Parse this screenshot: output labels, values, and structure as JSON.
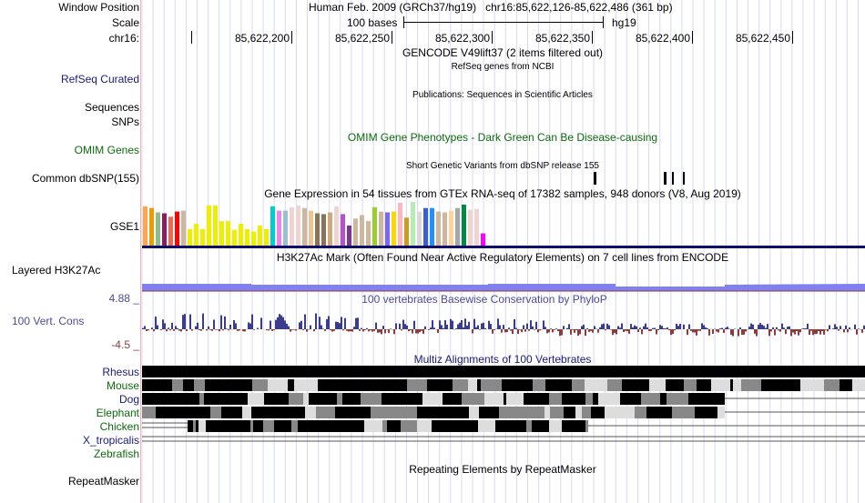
{
  "header": {
    "window_position_label": "Window Position",
    "scale_label": "Scale",
    "chrom_label": "chr16:",
    "assembly_text": "Human Feb. 2009 (GRCh37/hg19)   chr16:85,622,126-85,622,486 (361 bp)",
    "scale_text": "100 bases",
    "scale_db": "hg19",
    "ruler_ticks": [
      "85,622,200",
      "85,622,250",
      "85,622,300",
      "85,622,350",
      "85,622,400",
      "85,622,450"
    ]
  },
  "tracks": {
    "gencode": {
      "title": "GENCODE V49lift37 (2 items filtered out)"
    },
    "refseq": {
      "label": "RefSeq Curated",
      "title": "RefSeq genes from NCBI"
    },
    "publications": {
      "label_line1": "Sequences",
      "label_line2": "SNPs",
      "title": "Publications: Sequences in Scientific Articles"
    },
    "omim": {
      "label": "OMIM Genes",
      "title": "OMIM Gene Phenotypes - Dark Green Can Be Disease-causing"
    },
    "dbsnp": {
      "label": "Common dbSNP(155)",
      "title": "Short Genetic Variants from dbSNP release 155"
    },
    "gtex": {
      "label": "GSE1",
      "title": "Gene Expression in 54 tissues from GTEx RNA-seq of 17382 samples, 948 donors (V8, Aug 2019)",
      "bar_colors": [
        "#FFA54F",
        "#EE9A00",
        "#8FBC8F",
        "#8B1C62",
        "#EE6A50",
        "#FF0000",
        "#CDB79E",
        "#EEEE00",
        "#EEEE00",
        "#EEEE00",
        "#EEEE00",
        "#EEEE00",
        "#EEEE00",
        "#EEEE00",
        "#EEEE00",
        "#EEEE00",
        "#EEEE00",
        "#EEEE00",
        "#EEEE00",
        "#EEEE00",
        "#00CDCD",
        "#EE82EE",
        "#9AC0CD",
        "#EED5D2",
        "#EED5D2",
        "#CDB79E",
        "#EEC591",
        "#8B7355",
        "#8B7355",
        "#CDAA7D",
        "#EED5D2",
        "#B452CD",
        "#7A378B",
        "#CDB79E",
        "#CDB79E",
        "#CDB79E",
        "#9ACD32",
        "#CDB79E",
        "#7B68EE",
        "#FFD700",
        "#FFB6C1",
        "#CD9B1D",
        "#B4EEB4",
        "#D9D9D9",
        "#3A5FCD",
        "#1E90FF",
        "#CDB79E",
        "#CDB79E",
        "#FFD39B",
        "#A6A6A6",
        "#008B45",
        "#EED5D2",
        "#EED5D2",
        "#FF00FF"
      ],
      "bar_values": [
        0.9,
        0.86,
        0.76,
        0.74,
        0.66,
        0.78,
        0.8,
        0.38,
        0.5,
        0.38,
        0.92,
        0.92,
        0.56,
        0.56,
        0.36,
        0.5,
        0.38,
        0.32,
        0.46,
        0.38,
        0.9,
        0.8,
        0.8,
        0.88,
        0.92,
        0.86,
        0.8,
        0.74,
        0.72,
        0.76,
        0.9,
        0.72,
        0.46,
        0.62,
        0.7,
        0.56,
        0.88,
        0.78,
        0.76,
        0.78,
        0.98,
        0.64,
        1.0,
        0.78,
        0.86,
        0.86,
        0.78,
        0.76,
        0.8,
        0.86,
        0.94,
        0.82,
        0.84,
        0.28
      ]
    },
    "h3k27ac": {
      "label": "Layered H3K27Ac",
      "title": "H3K27Ac Mark (Often Found Near Active Regulatory Elements) on 7 cell lines from ENCODE"
    },
    "phylop": {
      "label": "100 Vert. Cons",
      "max_label": "4.88 _",
      "min_label": "-4.5 _",
      "title": "100 vertebrates Basewise Conservation by PhyloP"
    },
    "multiz": {
      "title": "Multiz Alignments of 100 Vertebrates",
      "species": [
        {
          "name": "Rhesus",
          "color": "blue"
        },
        {
          "name": "Mouse",
          "color": "green"
        },
        {
          "name": "Dog",
          "color": "blue"
        },
        {
          "name": "Elephant",
          "color": "green"
        },
        {
          "name": "Chicken",
          "color": "green"
        },
        {
          "name": "X_tropicalis",
          "color": "blue"
        },
        {
          "name": "Zebrafish",
          "color": "green"
        }
      ]
    },
    "repeatmasker": {
      "label": "RepeatMasker",
      "title": "Repeating Elements by RepeatMasker"
    }
  },
  "colors": {
    "label_blue": "#1a1a7a",
    "label_green": "#0c6a0c",
    "phylop_pos": "#3c3c8c",
    "phylop_neg": "#8c3c3c",
    "h3k27ac_fill": "#8080f0",
    "grid": "#d8d8f4"
  }
}
